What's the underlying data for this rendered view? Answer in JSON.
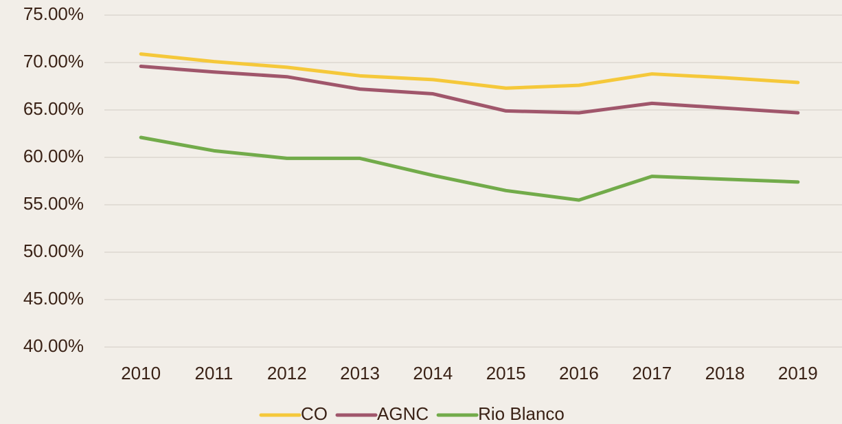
{
  "chart_data": {
    "type": "line",
    "categories": [
      "2010",
      "2011",
      "2012",
      "2013",
      "2014",
      "2015",
      "2016",
      "2017",
      "2018",
      "2019"
    ],
    "series": [
      {
        "name": "CO",
        "color": "#f5c83a",
        "values": [
          70.9,
          70.1,
          69.5,
          68.6,
          68.2,
          67.3,
          67.6,
          68.8,
          68.4,
          67.9
        ]
      },
      {
        "name": "AGNC",
        "color": "#a0566b",
        "values": [
          69.6,
          69.0,
          68.5,
          67.2,
          66.7,
          64.9,
          64.7,
          65.7,
          65.2,
          64.7
        ]
      },
      {
        "name": "Rio Blanco",
        "color": "#72ab4a",
        "values": [
          62.1,
          60.7,
          59.9,
          59.9,
          58.1,
          56.5,
          55.5,
          58.0,
          57.7,
          57.4
        ]
      }
    ],
    "ylim": [
      40,
      75
    ],
    "yticks": [
      {
        "value": 40,
        "label": "40.00%"
      },
      {
        "value": 45,
        "label": "45.00%"
      },
      {
        "value": 50,
        "label": "50.00%"
      },
      {
        "value": 55,
        "label": "55.00%"
      },
      {
        "value": 60,
        "label": "60.00%"
      },
      {
        "value": 65,
        "label": "65.00%"
      },
      {
        "value": 70,
        "label": "70.00%"
      },
      {
        "value": 75,
        "label": "75.00%"
      }
    ],
    "grid": true,
    "legend": "bottom"
  }
}
